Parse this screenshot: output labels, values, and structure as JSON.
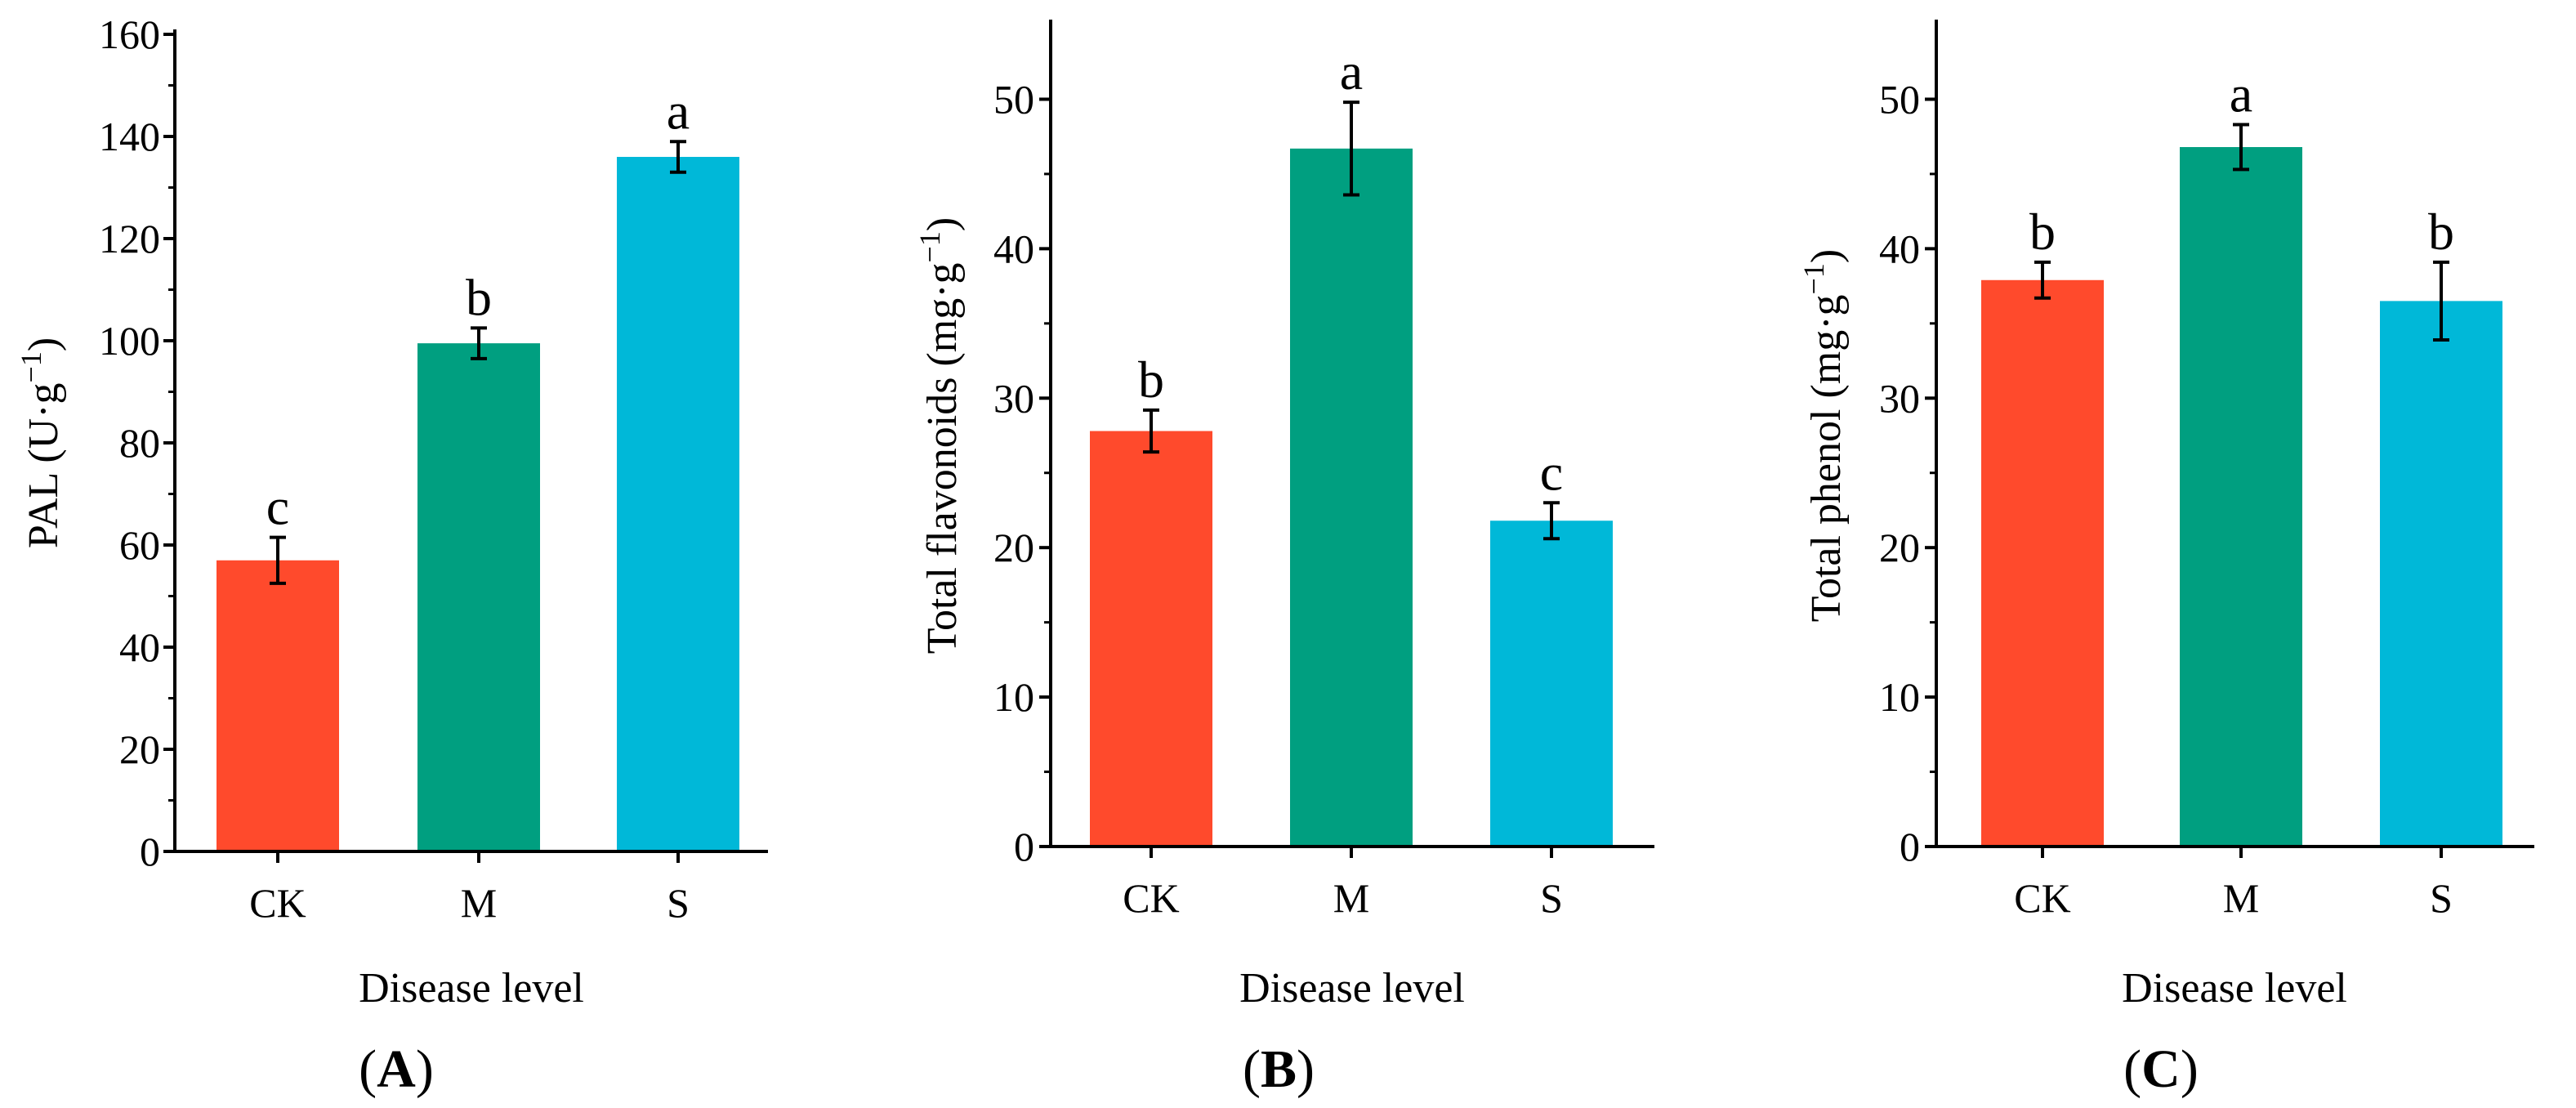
{
  "colors": {
    "CK": "#ff4a2c",
    "M": "#009f80",
    "S": "#00b8d8"
  },
  "chart_data": [
    {
      "type": "bar",
      "panel": "A",
      "title": "",
      "categories": [
        "CK",
        "M",
        "S"
      ],
      "values": [
        57,
        99.5,
        136
      ],
      "errors": [
        4.5,
        3,
        3
      ],
      "significance": [
        "c",
        "b",
        "a"
      ],
      "xlabel": "Disease level",
      "ylabel": "PAL (U·g⁻¹)",
      "ylabel_base": "PAL (U·g",
      "ylabel_sup": "−1",
      "ylabel_close": ")",
      "ylim": [
        0,
        160
      ],
      "yticks": [
        0,
        20,
        40,
        60,
        80,
        100,
        120,
        140,
        160
      ],
      "grid": false,
      "legend": "none"
    },
    {
      "type": "bar",
      "panel": "B",
      "title": "",
      "categories": [
        "CK",
        "M",
        "S"
      ],
      "values": [
        27.8,
        46.7,
        21.8
      ],
      "errors": [
        1.4,
        3.1,
        1.2
      ],
      "significance": [
        "b",
        "a",
        "c"
      ],
      "xlabel": "Disease level",
      "ylabel": "Total flavonoids (mg·g⁻¹)",
      "ylabel_base": "Total flavonoids (mg·g",
      "ylabel_sup": "−1",
      "ylabel_close": ")",
      "ylim": [
        0,
        55
      ],
      "yticks": [
        0,
        10,
        20,
        30,
        40,
        50
      ],
      "grid": false,
      "legend": "none"
    },
    {
      "type": "bar",
      "panel": "C",
      "title": "",
      "categories": [
        "CK",
        "M",
        "S"
      ],
      "values": [
        37.9,
        46.8,
        36.5
      ],
      "errors": [
        1.2,
        1.5,
        2.6
      ],
      "significance": [
        "b",
        "a",
        "b"
      ],
      "xlabel": "Disease level",
      "ylabel": "Total phenol (mg·g⁻¹)",
      "ylabel_base": "Total phenol (mg·g",
      "ylabel_sup": "−1",
      "ylabel_close": ")",
      "ylim": [
        0,
        55
      ],
      "yticks": [
        0,
        10,
        20,
        30,
        40,
        50
      ],
      "grid": false,
      "legend": "none"
    }
  ]
}
